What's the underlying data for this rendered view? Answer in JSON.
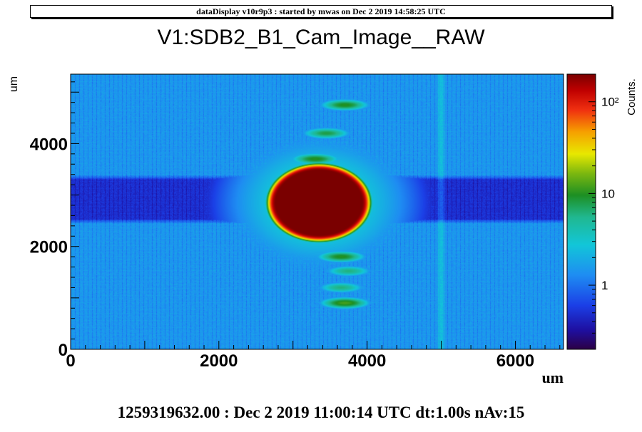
{
  "header": {
    "text": "dataDisplay v10r9p3 : started by mwas on Dec  2 2019 14:58:25 UTC"
  },
  "footer": {
    "text": "1259319632.00 : Dec  2 2019 11:00:14 UTC dt:1.00s nAv:15"
  },
  "chart_data": {
    "type": "heatmap",
    "title": "V1:SDB2_B1_Cam_Image__RAW",
    "xlabel": "um",
    "ylabel": "um",
    "zlabel": "Counts.",
    "xlim": [
      0,
      6650
    ],
    "ylim": [
      0,
      5350
    ],
    "x_ticks": [
      "0",
      "2000",
      "4000",
      "6000"
    ],
    "y_ticks": [
      "0",
      "2000",
      "4000"
    ],
    "z_scale": "log",
    "zlim": [
      0.2,
      200
    ],
    "z_ticks": [
      {
        "value": 1,
        "label": "1"
      },
      {
        "value": 10,
        "label": "10"
      },
      {
        "value": 100,
        "label": "10²"
      }
    ],
    "colormap": "rainbow (dark blue → cyan → green → yellow → red → dark red)",
    "features": [
      {
        "name": "central spot",
        "x": 3350,
        "y": 2850,
        "peak": 200
      },
      {
        "name": "ghost",
        "x": 3700,
        "y": 4750,
        "peak": 10
      },
      {
        "name": "ghost",
        "x": 3450,
        "y": 4200,
        "peak": 8
      },
      {
        "name": "ghost",
        "x": 3300,
        "y": 3700,
        "peak": 10
      },
      {
        "name": "ghost",
        "x": 3650,
        "y": 1800,
        "peak": 10
      },
      {
        "name": "ghost",
        "x": 3750,
        "y": 1520,
        "peak": 6
      },
      {
        "name": "ghost",
        "x": 3650,
        "y": 1200,
        "peak": 6
      },
      {
        "name": "ghost",
        "x": 3700,
        "y": 900,
        "peak": 12
      }
    ],
    "background_band": {
      "y_range": [
        2450,
        3380
      ],
      "level": 0.5
    },
    "background_level": 1.5,
    "grid": false
  }
}
